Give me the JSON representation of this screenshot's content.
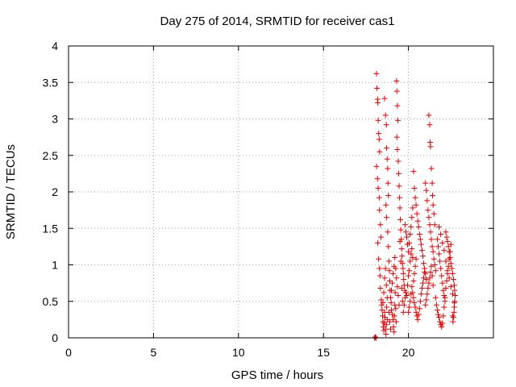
{
  "chart_data": {
    "type": "scatter",
    "title": "Day 275 of 2014, SRMTID for receiver cas1",
    "xlabel": "GPS time / hours",
    "ylabel": "SRMTID / TECUs",
    "xlim": [
      0,
      25
    ],
    "ylim": [
      0,
      4
    ],
    "xticks": [
      "0",
      "5",
      "10",
      "15",
      "20"
    ],
    "xtick_values": [
      0,
      5,
      10,
      15,
      20
    ],
    "yticks": [
      "0",
      "0.5",
      "1",
      "1.5",
      "2",
      "2.5",
      "3",
      "3.5",
      "4"
    ],
    "ytick_values": [
      0,
      0.5,
      1,
      1.5,
      2,
      2.5,
      3,
      3.5,
      4
    ],
    "grid": true,
    "marker": "+",
    "marker_color": "#e00000",
    "series": [
      {
        "name": "cas1",
        "points": [
          [
            18.0,
            0.0
          ],
          [
            18.05,
            0.01
          ],
          [
            18.1,
            0.0
          ],
          [
            18.12,
            3.62
          ],
          [
            18.15,
            3.42
          ],
          [
            18.18,
            3.27
          ],
          [
            18.2,
            3.22
          ],
          [
            18.22,
            2.98
          ],
          [
            18.25,
            2.8
          ],
          [
            18.28,
            2.72
          ],
          [
            18.3,
            2.55
          ],
          [
            18.12,
            2.35
          ],
          [
            18.18,
            2.18
          ],
          [
            18.22,
            2.05
          ],
          [
            18.28,
            1.92
          ],
          [
            18.3,
            1.75
          ],
          [
            18.35,
            1.55
          ],
          [
            18.38,
            1.38
          ],
          [
            18.2,
            1.3
          ],
          [
            18.25,
            1.08
          ],
          [
            18.3,
            0.95
          ],
          [
            18.33,
            0.85
          ],
          [
            18.35,
            0.68
          ],
          [
            18.4,
            0.52
          ],
          [
            18.42,
            0.45
          ],
          [
            18.45,
            0.38
          ],
          [
            18.48,
            0.3
          ],
          [
            18.5,
            0.22
          ],
          [
            18.52,
            0.15
          ],
          [
            18.55,
            0.1
          ],
          [
            18.58,
            0.2
          ],
          [
            18.6,
            0.35
          ],
          [
            18.62,
            0.28
          ],
          [
            18.65,
            0.12
          ],
          [
            18.68,
            0.05
          ],
          [
            18.7,
            0.18
          ],
          [
            18.72,
            0.42
          ],
          [
            18.75,
            0.25
          ],
          [
            18.6,
            3.28
          ],
          [
            18.65,
            3.05
          ],
          [
            18.7,
            2.92
          ],
          [
            18.72,
            2.6
          ],
          [
            18.75,
            2.45
          ],
          [
            18.78,
            2.32
          ],
          [
            18.8,
            2.12
          ],
          [
            18.82,
            1.95
          ],
          [
            18.68,
            1.82
          ],
          [
            18.72,
            1.65
          ],
          [
            18.78,
            1.45
          ],
          [
            18.82,
            1.25
          ],
          [
            18.85,
            1.05
          ],
          [
            18.88,
            0.92
          ],
          [
            18.9,
            0.78
          ],
          [
            18.92,
            0.65
          ],
          [
            18.95,
            0.55
          ],
          [
            18.98,
            0.48
          ],
          [
            19.0,
            0.38
          ],
          [
            19.05,
            0.32
          ],
          [
            19.1,
            0.25
          ],
          [
            19.12,
            0.15
          ],
          [
            19.15,
            0.08
          ],
          [
            19.18,
            0.3
          ],
          [
            19.2,
            0.45
          ],
          [
            19.22,
            0.62
          ],
          [
            19.25,
            0.4
          ],
          [
            19.28,
            0.22
          ],
          [
            19.3,
            3.52
          ],
          [
            19.32,
            3.38
          ],
          [
            19.35,
            3.18
          ],
          [
            19.38,
            2.98
          ],
          [
            19.32,
            2.75
          ],
          [
            19.35,
            2.58
          ],
          [
            19.4,
            2.42
          ],
          [
            19.42,
            2.25
          ],
          [
            19.45,
            2.08
          ],
          [
            19.48,
            1.92
          ],
          [
            19.5,
            1.78
          ],
          [
            19.52,
            1.62
          ],
          [
            19.55,
            1.48
          ],
          [
            19.58,
            1.35
          ],
          [
            19.6,
            1.22
          ],
          [
            19.62,
            1.12
          ],
          [
            19.65,
            1.02
          ],
          [
            19.68,
            0.95
          ],
          [
            19.7,
            0.88
          ],
          [
            19.72,
            0.8
          ],
          [
            19.75,
            0.72
          ],
          [
            19.78,
            0.65
          ],
          [
            19.5,
            1.32
          ],
          [
            19.55,
            1.05
          ],
          [
            19.6,
            0.68
          ],
          [
            19.65,
            0.5
          ],
          [
            19.7,
            0.35
          ],
          [
            19.75,
            0.45
          ],
          [
            19.8,
            0.55
          ],
          [
            19.85,
            0.62
          ],
          [
            19.9,
            0.58
          ],
          [
            19.95,
            0.72
          ],
          [
            20.0,
            0.85
          ],
          [
            20.05,
            0.92
          ],
          [
            20.1,
            1.05
          ],
          [
            20.15,
            1.15
          ],
          [
            20.2,
            1.22
          ],
          [
            20.25,
            1.1
          ],
          [
            20.3,
            2.28
          ],
          [
            20.35,
            2.05
          ],
          [
            20.4,
            1.92
          ],
          [
            20.45,
            1.82
          ],
          [
            20.5,
            1.7
          ],
          [
            20.55,
            1.6
          ],
          [
            20.6,
            1.52
          ],
          [
            20.65,
            1.42
          ],
          [
            20.7,
            1.35
          ],
          [
            20.75,
            1.28
          ],
          [
            20.8,
            1.2
          ],
          [
            20.85,
            1.12
          ],
          [
            20.9,
            1.02
          ],
          [
            20.95,
            0.95
          ],
          [
            21.0,
            0.88
          ],
          [
            21.05,
            0.8
          ],
          [
            20.3,
            0.55
          ],
          [
            20.35,
            0.48
          ],
          [
            20.4,
            0.42
          ],
          [
            20.45,
            0.35
          ],
          [
            20.5,
            0.3
          ],
          [
            20.55,
            0.25
          ],
          [
            20.6,
            0.32
          ],
          [
            20.65,
            0.4
          ],
          [
            20.7,
            0.5
          ],
          [
            20.75,
            0.6
          ],
          [
            20.8,
            0.68
          ],
          [
            20.85,
            0.75
          ],
          [
            20.9,
            0.82
          ],
          [
            20.95,
            0.9
          ],
          [
            21.0,
            2.12
          ],
          [
            21.05,
            2.02
          ],
          [
            21.1,
            1.88
          ],
          [
            21.15,
            1.75
          ],
          [
            21.2,
            1.65
          ],
          [
            21.25,
            1.55
          ],
          [
            21.3,
            1.45
          ],
          [
            21.35,
            1.35
          ],
          [
            21.4,
            1.25
          ],
          [
            21.45,
            1.18
          ],
          [
            21.5,
            1.08
          ],
          [
            21.55,
            1.0
          ],
          [
            21.6,
            0.92
          ],
          [
            21.2,
            3.05
          ],
          [
            21.25,
            2.92
          ],
          [
            21.28,
            2.68
          ],
          [
            21.3,
            2.62
          ],
          [
            21.35,
            2.32
          ],
          [
            21.4,
            2.12
          ],
          [
            21.42,
            1.95
          ],
          [
            21.45,
            1.82
          ],
          [
            21.5,
            1.7
          ],
          [
            21.55,
            1.55
          ],
          [
            21.6,
            0.55
          ],
          [
            21.65,
            0.45
          ],
          [
            21.7,
            0.38
          ],
          [
            21.75,
            0.32
          ],
          [
            21.8,
            0.28
          ],
          [
            21.85,
            0.22
          ],
          [
            21.9,
            0.18
          ],
          [
            21.95,
            0.15
          ],
          [
            22.0,
            0.2
          ],
          [
            22.05,
            0.3
          ],
          [
            22.1,
            0.42
          ],
          [
            22.15,
            0.55
          ],
          [
            22.2,
            0.68
          ],
          [
            22.25,
            0.78
          ],
          [
            22.3,
            0.88
          ],
          [
            22.35,
            0.98
          ],
          [
            22.4,
            1.08
          ],
          [
            22.45,
            1.18
          ],
          [
            22.5,
            1.28
          ],
          [
            22.2,
            1.45
          ],
          [
            22.25,
            1.38
          ],
          [
            22.3,
            1.32
          ],
          [
            22.35,
            1.25
          ],
          [
            22.4,
            1.18
          ],
          [
            22.45,
            1.1
          ],
          [
            22.5,
            1.02
          ],
          [
            22.55,
            0.95
          ],
          [
            22.6,
            0.88
          ],
          [
            22.65,
            0.8
          ],
          [
            22.7,
            0.72
          ],
          [
            22.72,
            0.65
          ],
          [
            22.75,
            0.58
          ],
          [
            22.72,
            0.5
          ],
          [
            22.7,
            0.42
          ],
          [
            22.68,
            0.35
          ],
          [
            22.65,
            0.28
          ],
          [
            22.62,
            0.22
          ],
          [
            22.6,
            0.3
          ],
          [
            18.5,
            0.48
          ],
          [
            18.55,
            0.62
          ],
          [
            18.6,
            0.82
          ],
          [
            18.65,
            0.95
          ],
          [
            18.7,
            0.72
          ],
          [
            18.75,
            0.55
          ],
          [
            18.85,
            0.35
          ],
          [
            18.9,
            0.22
          ],
          [
            18.95,
            0.12
          ],
          [
            19.0,
            0.65
          ],
          [
            19.05,
            0.75
          ],
          [
            19.1,
            0.88
          ],
          [
            19.15,
            0.98
          ],
          [
            19.2,
            1.1
          ],
          [
            19.25,
            0.95
          ],
          [
            19.3,
            0.82
          ],
          [
            19.35,
            0.7
          ],
          [
            19.4,
            0.58
          ],
          [
            19.45,
            0.45
          ],
          [
            19.8,
            1.55
          ],
          [
            19.85,
            1.45
          ],
          [
            19.9,
            1.38
          ],
          [
            19.95,
            1.28
          ],
          [
            20.0,
            1.18
          ],
          [
            20.05,
            1.3
          ],
          [
            20.1,
            1.42
          ],
          [
            20.15,
            1.52
          ],
          [
            20.2,
            1.65
          ],
          [
            20.25,
            1.78
          ],
          [
            20.0,
            0.35
          ],
          [
            20.05,
            0.42
          ],
          [
            20.1,
            0.5
          ],
          [
            20.15,
            0.6
          ],
          [
            20.2,
            0.7
          ],
          [
            20.25,
            0.62
          ],
          [
            20.3,
            0.78
          ],
          [
            20.35,
            0.88
          ],
          [
            20.4,
            0.98
          ],
          [
            20.45,
            1.08
          ],
          [
            21.0,
            0.45
          ],
          [
            21.05,
            0.52
          ],
          [
            21.1,
            0.6
          ],
          [
            21.15,
            0.68
          ],
          [
            21.2,
            0.75
          ],
          [
            21.25,
            0.82
          ],
          [
            21.3,
            0.9
          ],
          [
            21.35,
            0.98
          ],
          [
            21.4,
            0.85
          ],
          [
            21.45,
            0.72
          ],
          [
            21.7,
            1.35
          ],
          [
            21.75,
            1.25
          ],
          [
            21.8,
            1.15
          ],
          [
            21.85,
            1.05
          ],
          [
            21.9,
            0.95
          ],
          [
            21.95,
            0.85
          ],
          [
            22.0,
            0.75
          ],
          [
            22.05,
            0.65
          ],
          [
            22.1,
            0.58
          ],
          [
            22.15,
            0.5
          ],
          [
            21.8,
            1.52
          ],
          [
            21.9,
            1.42
          ],
          [
            22.0,
            1.3
          ],
          [
            22.1,
            1.2
          ],
          [
            22.2,
            1.05
          ],
          [
            22.3,
            0.92
          ],
          [
            22.4,
            0.82
          ],
          [
            22.5,
            0.7
          ],
          [
            22.6,
            0.6
          ],
          [
            22.7,
            0.48
          ]
        ]
      }
    ]
  }
}
